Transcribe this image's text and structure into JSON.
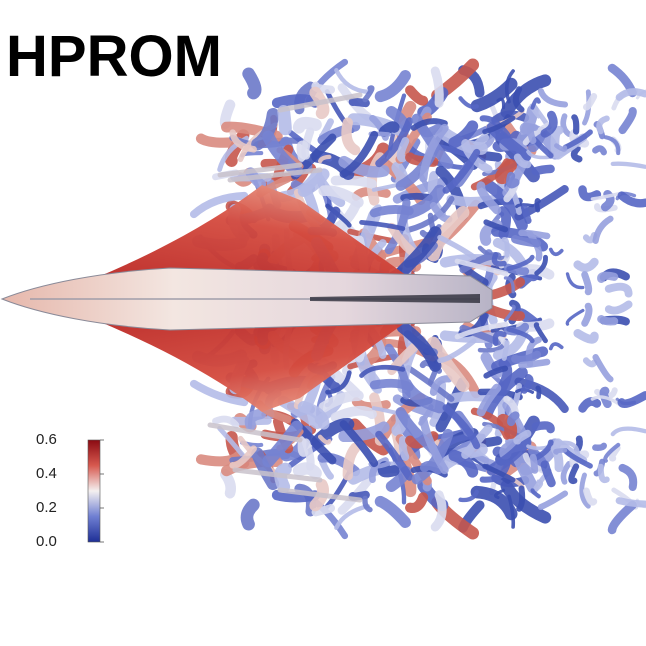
{
  "title": "HPROM",
  "colorbar": {
    "ticks": [
      "0.6",
      "0.4",
      "0.2",
      "0.0"
    ],
    "colors": {
      "high": "#9e0d14",
      "mid": "#f1f1f1",
      "low": "#1f3a9e"
    }
  }
}
